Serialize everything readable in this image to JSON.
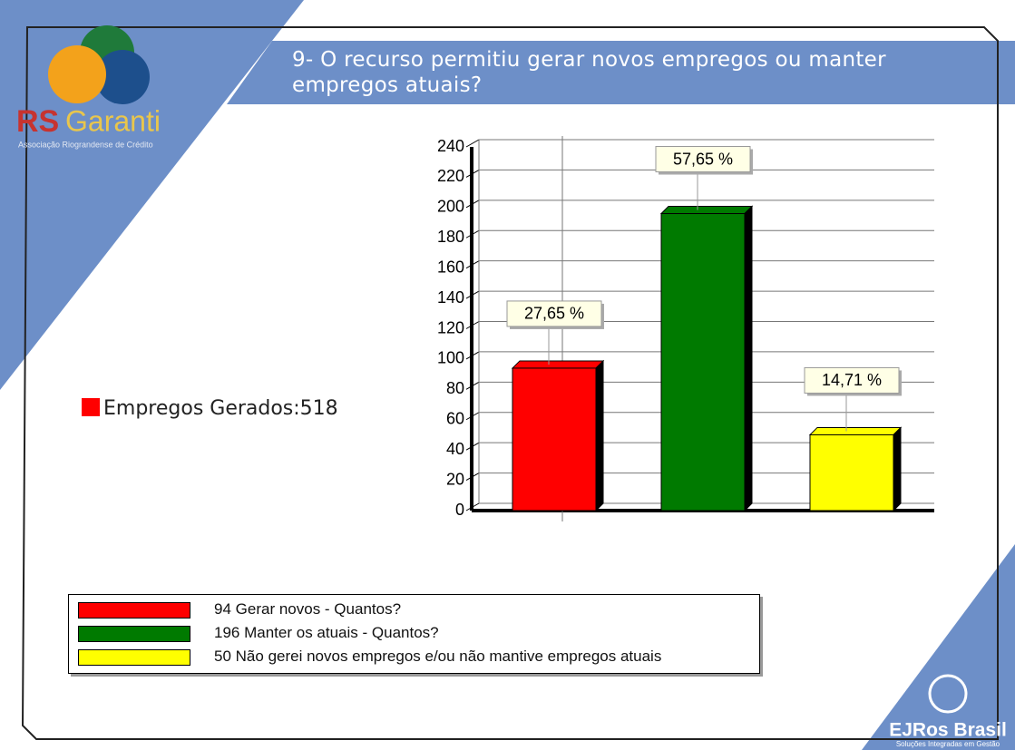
{
  "logo_top": {
    "brand_a": "RS",
    "brand_b": "Garanti",
    "tagline": "Associação Riograndense de Crédito"
  },
  "logo_bottom": {
    "brand": "EJRos Brasil",
    "tagline": "Soluções Integradas em Gestão"
  },
  "chart_data": {
    "type": "bar",
    "title": "9- O recurso permitiu gerar novos empregos ou manter empregos atuais?",
    "side_note": "Empregos Gerados:518",
    "side_note_color": "#ff0000",
    "categories": [
      null
    ],
    "series": [
      {
        "name": "Gerar novos - Quantos?",
        "color": "#ff0000",
        "values": [
          94
        ]
      },
      {
        "name": "Manter os atuais - Quantos?",
        "color": "#007a00",
        "values": [
          196
        ]
      },
      {
        "name": "Não gerei novos empregos e/ou não mantive empregos atuais",
        "color": "#ffff00",
        "values": [
          50
        ]
      }
    ],
    "annotations": [
      "27,65 %",
      "57,65 %",
      "14,71 %"
    ],
    "ylim": [
      0,
      240
    ],
    "yticks": [
      0,
      20,
      40,
      60,
      80,
      100,
      120,
      140,
      160,
      180,
      200,
      220,
      240
    ],
    "grid": true
  }
}
